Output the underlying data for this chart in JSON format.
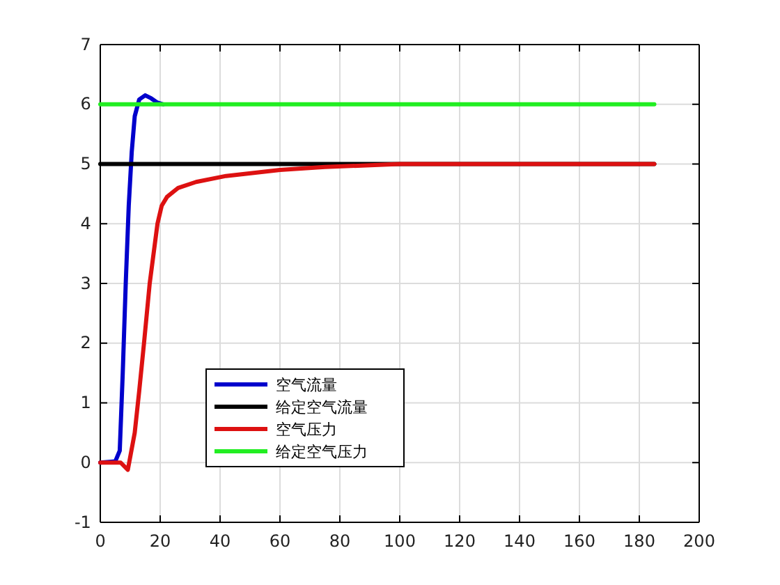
{
  "chart_data": {
    "type": "line",
    "xlim": [
      0,
      200
    ],
    "xticks": [
      0,
      20,
      40,
      60,
      80,
      100,
      120,
      140,
      160,
      180,
      200
    ],
    "ylim": [
      -1,
      7
    ],
    "yticks": [
      -1,
      0,
      1,
      2,
      3,
      4,
      5,
      6,
      7
    ],
    "grid": true,
    "legend": "bottom left",
    "marker": "none",
    "line_style": "solid",
    "series": [
      {
        "name": "空气流量",
        "color": "#0000cc",
        "x": [
          0,
          5,
          6.5,
          7.5,
          8.5,
          9.5,
          10.5,
          11.5,
          13,
          15,
          17,
          19,
          21
        ],
        "values": [
          0,
          0.02,
          0.2,
          1.5,
          3,
          4.3,
          5.2,
          5.8,
          6.08,
          6.15,
          6.1,
          6.03,
          6
        ]
      },
      {
        "name": "给定空气流量",
        "color": "#000000",
        "x": [
          0,
          185
        ],
        "values": [
          5,
          5
        ]
      },
      {
        "name": "空气压力",
        "color": "#dd1111",
        "x": [
          0,
          6.8,
          9.2,
          11.5,
          13,
          14.6,
          16.5,
          19.1,
          20.5,
          22.3,
          26,
          32,
          42,
          60,
          75,
          100,
          185
        ],
        "values": [
          0,
          0,
          -0.12,
          0.5,
          1.2,
          2,
          3,
          4,
          4.3,
          4.45,
          4.6,
          4.7,
          4.8,
          4.9,
          4.95,
          5,
          5
        ]
      },
      {
        "name": "给定空气压力",
        "color": "#22ee22",
        "x": [
          0,
          185
        ],
        "values": [
          6,
          6
        ]
      }
    ]
  }
}
